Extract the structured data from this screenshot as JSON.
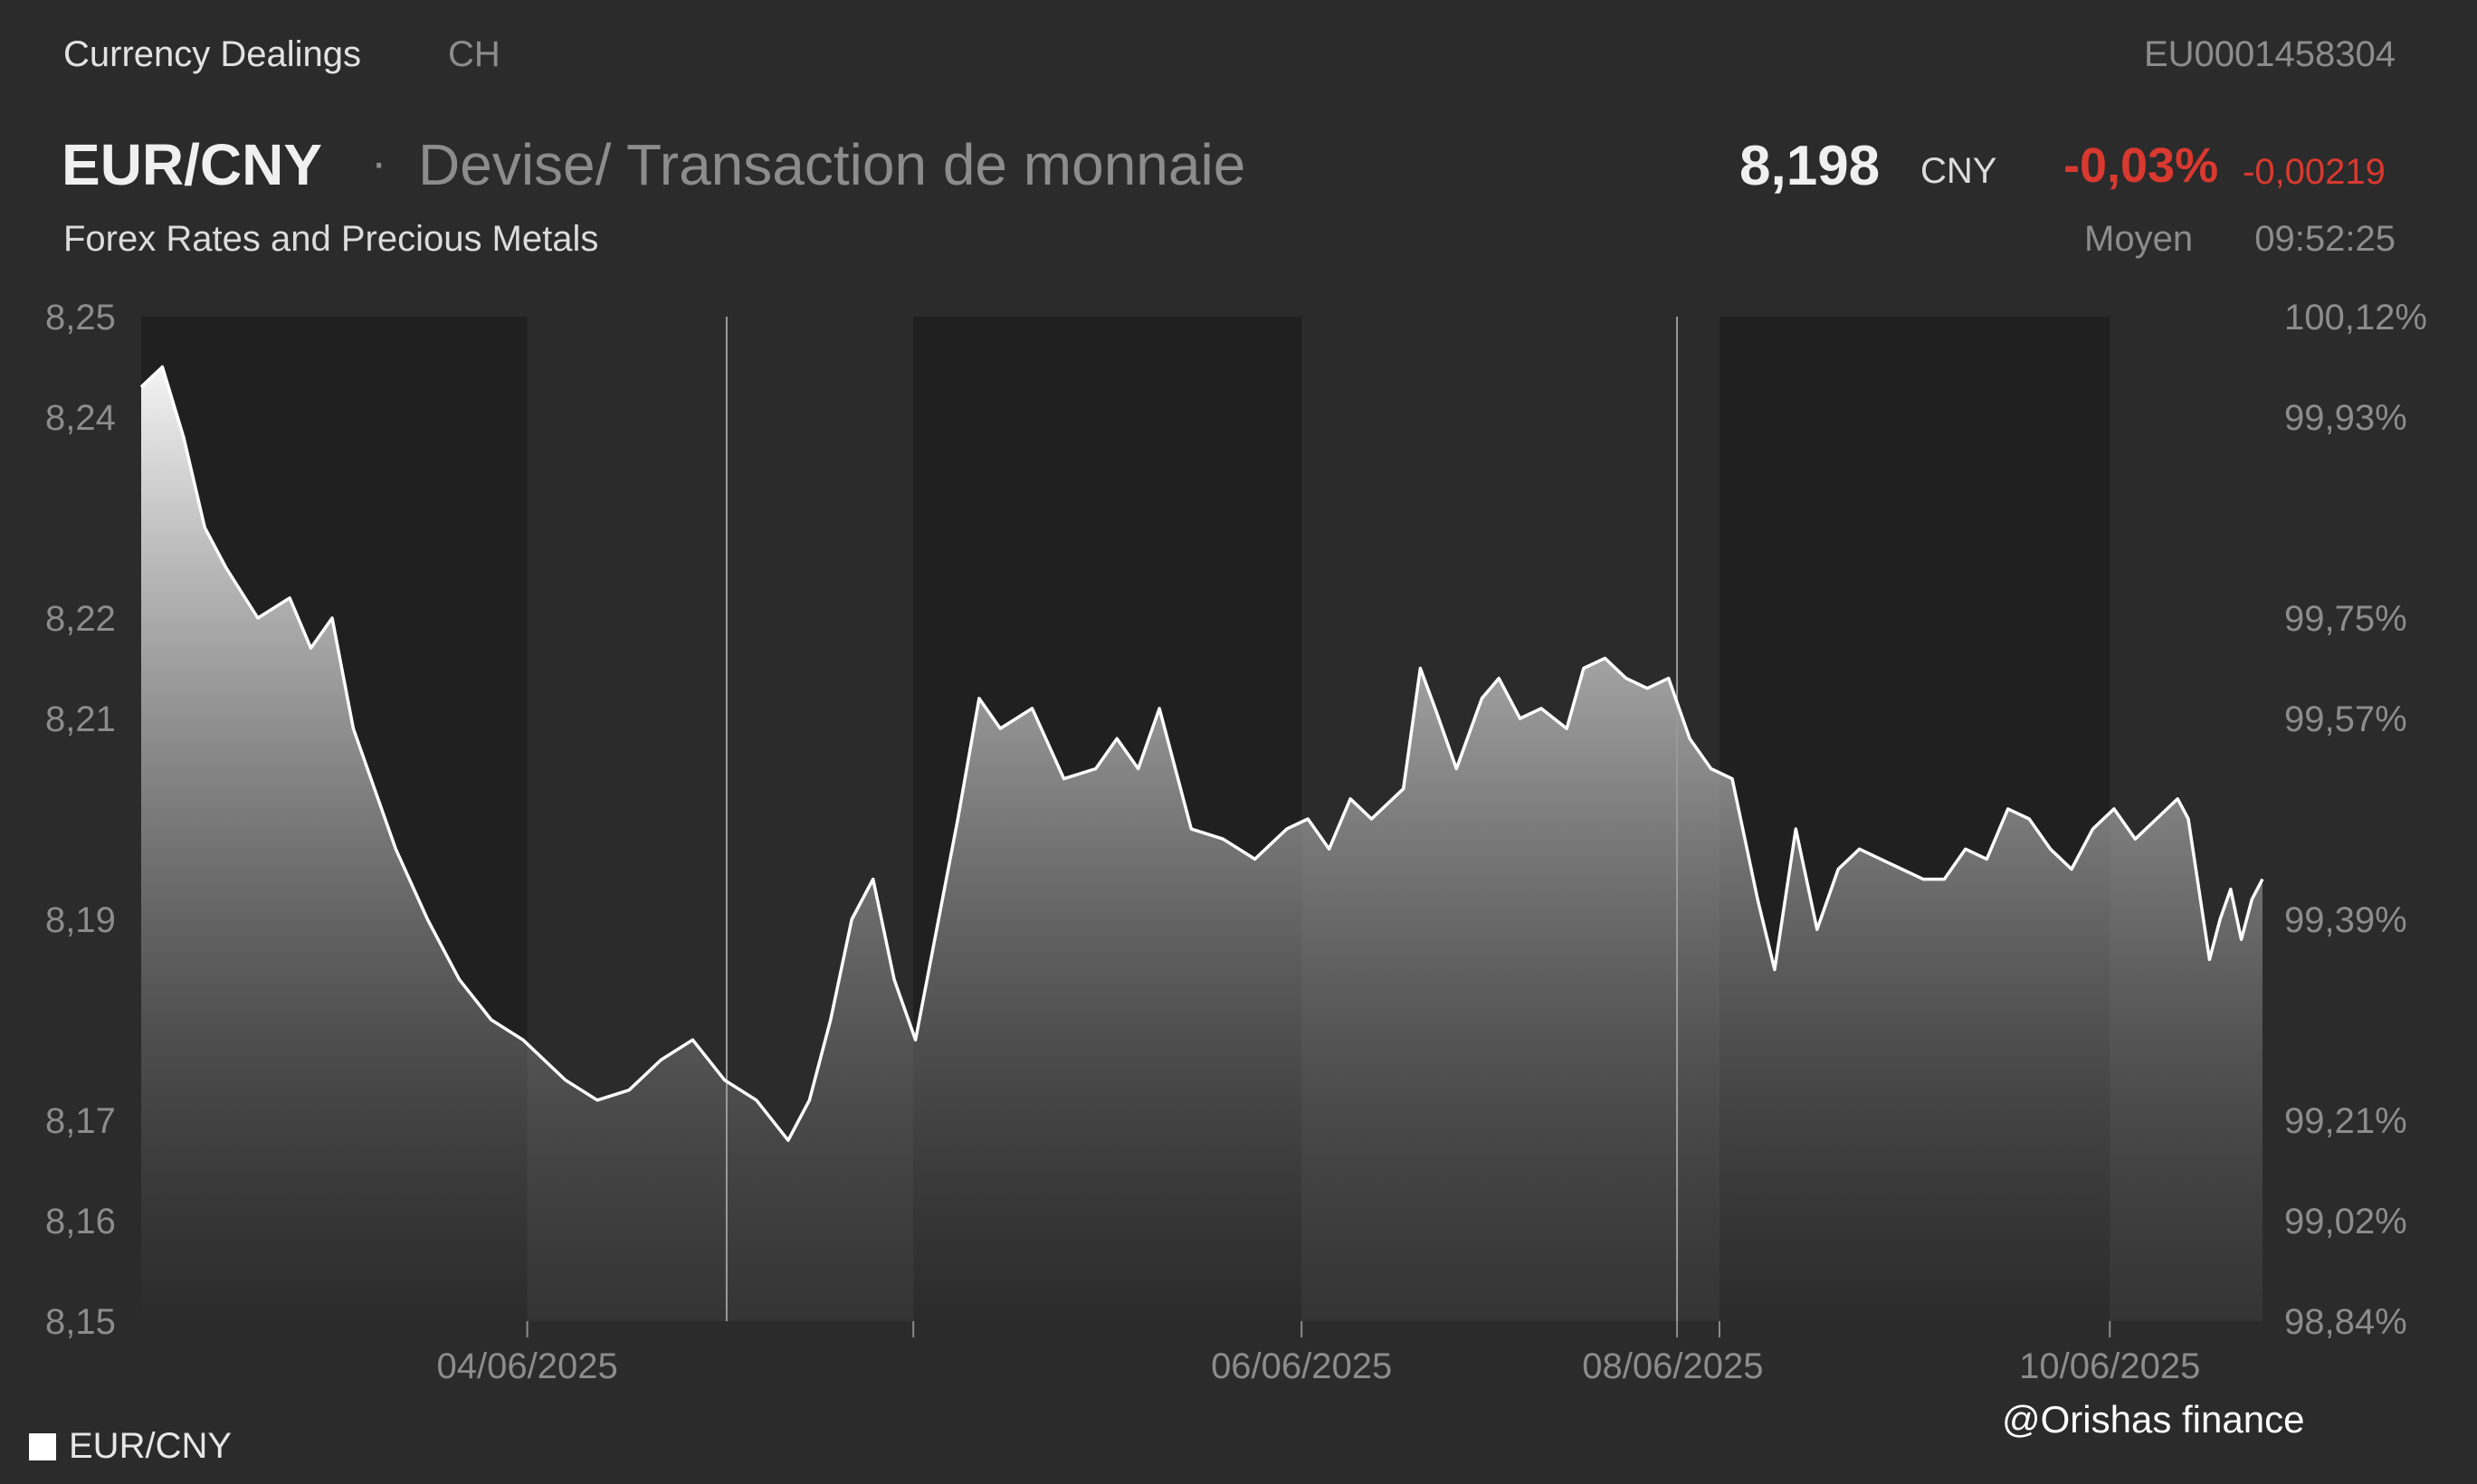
{
  "header": {
    "source": "Currency Dealings",
    "country": "CH",
    "isin": "EU0001458304",
    "pair": "EUR/CNY",
    "separator": "·",
    "instrument_type": "Devise/ Transaction de monnaie",
    "subtitle": "Forex Rates and Precious Metals",
    "price": "8,198",
    "currency": "CNY",
    "change_pct": "-0,03%",
    "change_abs": "-0,00219",
    "price_mode": "Moyen",
    "time": "09:52:25"
  },
  "legend": {
    "label": "EUR/CNY",
    "color": "#ffffff"
  },
  "watermark": "@Orishas finance",
  "colors": {
    "background": "#2b2b2b",
    "night_band": "#202020",
    "line": "#ffffff",
    "negative": "#d9392f",
    "axis_text": "#8c8c8c"
  },
  "chart_data": {
    "type": "area",
    "series": [
      {
        "name": "EUR/CNY"
      }
    ],
    "x_tick_labels": [
      "04/06/2025",
      "06/06/2025",
      "08/06/2025",
      "10/06/2025"
    ],
    "y_left_ticks": [
      "8,25",
      "8,24",
      "8,22",
      "8,21",
      "8,19",
      "8,17",
      "8,16",
      "8,15"
    ],
    "y_left_values": [
      8.25,
      8.24,
      8.22,
      8.21,
      8.19,
      8.17,
      8.16,
      8.15
    ],
    "y_right_ticks": [
      "100,12%",
      "99,93%",
      "99,75%",
      "99,57%",
      "99,39%",
      "99,21%",
      "99,02%",
      "98,84%"
    ],
    "ylim": [
      8.15,
      8.25
    ],
    "grid": false,
    "legend_position": "bottom-left",
    "points": [
      [
        0,
        8.243
      ],
      [
        0.01,
        8.245
      ],
      [
        0.02,
        8.238
      ],
      [
        0.03,
        8.229
      ],
      [
        0.04,
        8.225
      ],
      [
        0.055,
        8.22
      ],
      [
        0.07,
        8.222
      ],
      [
        0.08,
        8.217
      ],
      [
        0.09,
        8.22
      ],
      [
        0.1,
        8.209
      ],
      [
        0.11,
        8.203
      ],
      [
        0.12,
        8.197
      ],
      [
        0.135,
        8.19
      ],
      [
        0.15,
        8.184
      ],
      [
        0.165,
        8.18
      ],
      [
        0.18,
        8.178
      ],
      [
        0.2,
        8.174
      ],
      [
        0.215,
        8.172
      ],
      [
        0.23,
        8.173
      ],
      [
        0.245,
        8.176
      ],
      [
        0.26,
        8.178
      ],
      [
        0.275,
        8.174
      ],
      [
        0.29,
        8.172
      ],
      [
        0.305,
        8.168
      ],
      [
        0.315,
        8.172
      ],
      [
        0.325,
        8.18
      ],
      [
        0.335,
        8.19
      ],
      [
        0.345,
        8.194
      ],
      [
        0.355,
        8.184
      ],
      [
        0.365,
        8.178
      ],
      [
        0.375,
        8.189
      ],
      [
        0.385,
        8.2
      ],
      [
        0.395,
        8.212
      ],
      [
        0.405,
        8.209
      ],
      [
        0.42,
        8.211
      ],
      [
        0.435,
        8.204
      ],
      [
        0.45,
        8.205
      ],
      [
        0.46,
        8.208
      ],
      [
        0.47,
        8.205
      ],
      [
        0.48,
        8.211
      ],
      [
        0.495,
        8.199
      ],
      [
        0.51,
        8.198
      ],
      [
        0.525,
        8.196
      ],
      [
        0.54,
        8.199
      ],
      [
        0.55,
        8.2
      ],
      [
        0.56,
        8.197
      ],
      [
        0.57,
        8.202
      ],
      [
        0.58,
        8.2
      ],
      [
        0.595,
        8.203
      ],
      [
        0.603,
        8.215
      ],
      [
        0.61,
        8.211
      ],
      [
        0.62,
        8.205
      ],
      [
        0.632,
        8.212
      ],
      [
        0.64,
        8.214
      ],
      [
        0.65,
        8.21
      ],
      [
        0.66,
        8.211
      ],
      [
        0.672,
        8.209
      ],
      [
        0.68,
        8.215
      ],
      [
        0.69,
        8.216
      ],
      [
        0.7,
        8.214
      ],
      [
        0.71,
        8.213
      ],
      [
        0.72,
        8.214
      ],
      [
        0.73,
        8.208
      ],
      [
        0.74,
        8.205
      ],
      [
        0.75,
        8.204
      ],
      [
        0.762,
        8.192
      ],
      [
        0.77,
        8.185
      ],
      [
        0.78,
        8.199
      ],
      [
        0.79,
        8.189
      ],
      [
        0.8,
        8.195
      ],
      [
        0.81,
        8.197
      ],
      [
        0.82,
        8.196
      ],
      [
        0.83,
        8.195
      ],
      [
        0.84,
        8.194
      ],
      [
        0.85,
        8.194
      ],
      [
        0.86,
        8.197
      ],
      [
        0.87,
        8.196
      ],
      [
        0.88,
        8.201
      ],
      [
        0.89,
        8.2
      ],
      [
        0.9,
        8.197
      ],
      [
        0.91,
        8.195
      ],
      [
        0.92,
        8.199
      ],
      [
        0.93,
        8.201
      ],
      [
        0.94,
        8.198
      ],
      [
        0.95,
        8.2
      ],
      [
        0.96,
        8.202
      ],
      [
        0.965,
        8.2
      ],
      [
        0.97,
        8.193
      ],
      [
        0.975,
        8.186
      ],
      [
        0.98,
        8.19
      ],
      [
        0.985,
        8.193
      ],
      [
        0.99,
        8.188
      ],
      [
        0.995,
        8.192
      ],
      [
        1,
        8.194
      ]
    ]
  }
}
